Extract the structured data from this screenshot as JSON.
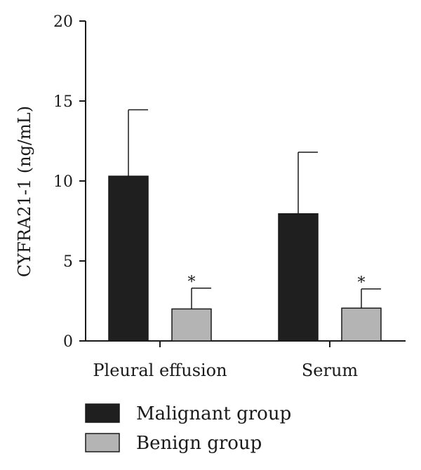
{
  "chart_data": {
    "type": "bar",
    "title": "",
    "xlabel": "",
    "ylabel": "CYFRA21-1 (ng/mL)",
    "ylim": [
      0,
      20
    ],
    "yticks": [
      0,
      5,
      10,
      15,
      20
    ],
    "categories": [
      "Pleural effusion",
      "Serum"
    ],
    "series": [
      {
        "name": "Malignant group",
        "color": "#1f1f1f",
        "values": [
          10.3,
          7.95
        ],
        "error": [
          4.15,
          3.85
        ],
        "annotations": [
          "",
          ""
        ]
      },
      {
        "name": "Benign group",
        "color": "#b4b4b4",
        "values": [
          2.0,
          2.05
        ],
        "error": [
          1.3,
          1.2
        ],
        "annotations": [
          "*",
          "*"
        ]
      }
    ],
    "legend_position": "bottom-left",
    "grid": false
  }
}
